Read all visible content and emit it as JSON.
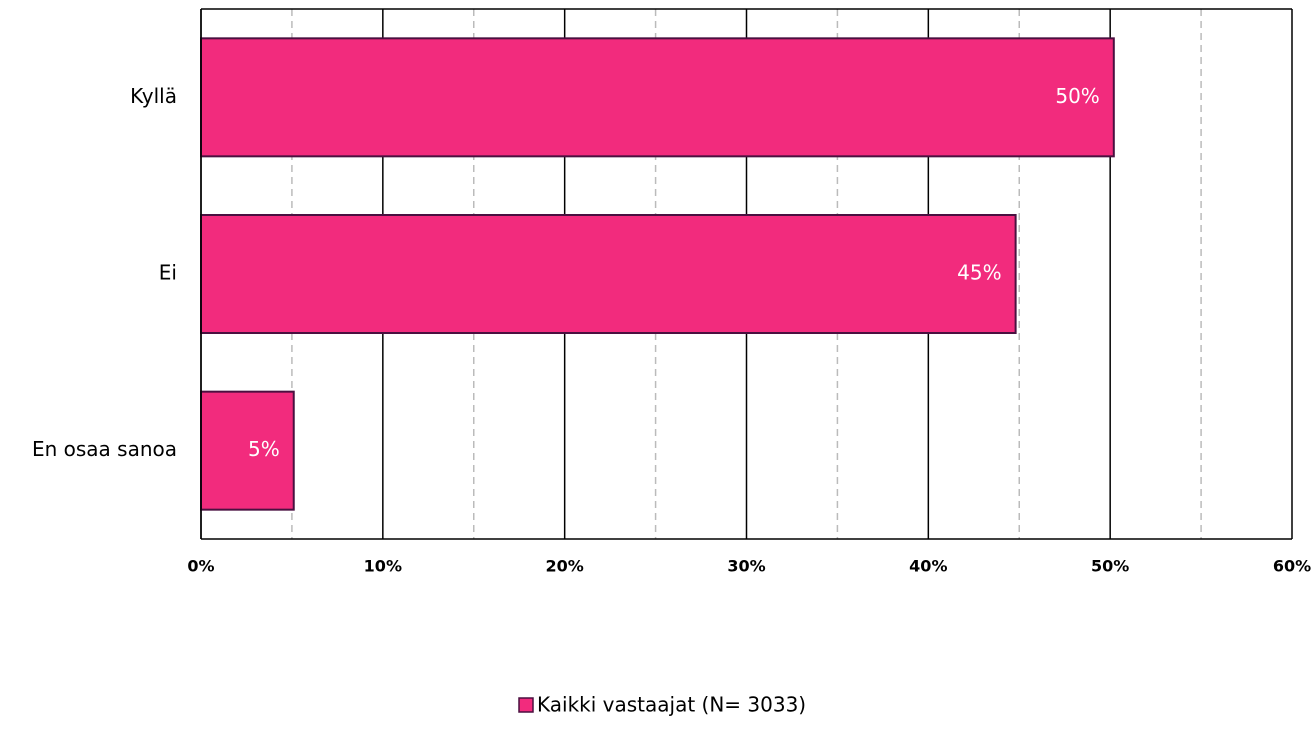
{
  "chart_data": {
    "type": "hbar",
    "categories": [
      "Kyllä",
      "Ei",
      "En osaa sanoa"
    ],
    "series": [
      {
        "name": "Kaikki vastaajat (N= 3033)",
        "color": "#f22b7d",
        "edge_color": "#4a1040",
        "values": [
          50.2,
          44.8,
          5.1
        ],
        "value_labels": [
          "50%",
          "45%",
          "5%"
        ]
      }
    ],
    "xlim": [
      0,
      60
    ],
    "xticks": [
      {
        "value": 0,
        "label": "0%"
      },
      {
        "value": 10,
        "label": "10%"
      },
      {
        "value": 20,
        "label": "20%"
      },
      {
        "value": 30,
        "label": "30%"
      },
      {
        "value": 40,
        "label": "40%"
      },
      {
        "value": 50,
        "label": "50%"
      },
      {
        "value": 60,
        "label": "60%"
      }
    ],
    "minor_xticks": [
      5,
      15,
      25,
      35,
      45,
      55
    ],
    "grid": true,
    "legend": "bottom"
  }
}
